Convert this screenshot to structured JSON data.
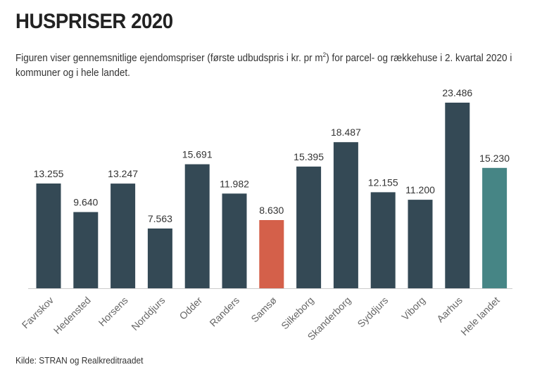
{
  "title": "HUSPRISER 2020",
  "subtitle": {
    "part1": "Figuren viser gennemsnitlige ejendomspriser (første udbudspris i kr. pr m",
    "superscript": "2",
    "part2": ") for parcel- og rækkehuse i 2. kvartal 2020 i kommuner og i hele landet."
  },
  "source": "Kilde: STRAN og Realkreditraadet",
  "colors": {
    "default_bar": "#344955",
    "highlight_bar": "#d4604a",
    "national_bar": "#468585",
    "axis": "#cccccc"
  },
  "chart_data": {
    "type": "bar",
    "title": "HUSPRISER 2020",
    "xlabel": "",
    "ylabel": "",
    "ylim": [
      0,
      23486
    ],
    "grid": false,
    "categories": [
      "Favrskov",
      "Hedensted",
      "Horsens",
      "Norddjurs",
      "Odder",
      "Randers",
      "Samsø",
      "Silkeborg",
      "Skanderborg",
      "Syddjurs",
      "Viborg",
      "Aarhus",
      "Hele landet"
    ],
    "values": [
      13255,
      9640,
      13247,
      7563,
      15691,
      11982,
      8630,
      15395,
      18487,
      12155,
      11200,
      23486,
      15230
    ],
    "value_labels": [
      "13.255",
      "9.640",
      "13.247",
      "7.563",
      "15.691",
      "11.982",
      "8.630",
      "15.395",
      "18.487",
      "12.155",
      "11.200",
      "23.486",
      "15.230"
    ],
    "bar_colors": [
      "default",
      "default",
      "default",
      "default",
      "default",
      "default",
      "highlight",
      "default",
      "default",
      "default",
      "default",
      "default",
      "national"
    ]
  }
}
